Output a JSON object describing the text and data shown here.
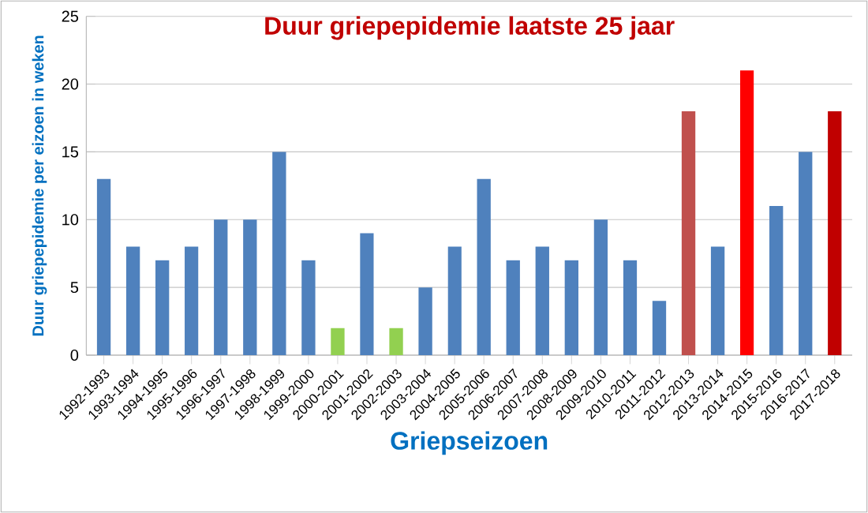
{
  "chart_data": {
    "type": "bar",
    "title": "Duur griepepidemie laatste 25 jaar",
    "xlabel": "Griepseizoen",
    "ylabel": "Duur griepepidemie per eizoen in weken",
    "categories": [
      "1992-1993",
      "1993-1994",
      "1994-1995",
      "1995-1996",
      "1996-1997",
      "1997-1998",
      "1998-1999",
      "1999-2000",
      "2000-2001",
      "2001-2002",
      "2002-2003",
      "2003-2004",
      "2004-2005",
      "2005-2006",
      "2006-2007",
      "2007-2008",
      "2008-2009",
      "2009-2010",
      "2010-2011",
      "2011-2012",
      "2012-2013",
      "2013-2014",
      "2014-2015",
      "2015-2016",
      "2016-2017",
      "2017-2018"
    ],
    "values": [
      13,
      8,
      7,
      8,
      10,
      10,
      15,
      7,
      2,
      9,
      2,
      5,
      8,
      13,
      7,
      8,
      7,
      10,
      7,
      4,
      18,
      8,
      21,
      11,
      15,
      18
    ],
    "colors": [
      "#4f81bd",
      "#4f81bd",
      "#4f81bd",
      "#4f81bd",
      "#4f81bd",
      "#4f81bd",
      "#4f81bd",
      "#4f81bd",
      "#92d050",
      "#4f81bd",
      "#92d050",
      "#4f81bd",
      "#4f81bd",
      "#4f81bd",
      "#4f81bd",
      "#4f81bd",
      "#4f81bd",
      "#4f81bd",
      "#4f81bd",
      "#4f81bd",
      "#c0504d",
      "#4f81bd",
      "#ff0000",
      "#4f81bd",
      "#4f81bd",
      "#c00000"
    ],
    "ylim": [
      0,
      25
    ],
    "yticks": [
      0,
      5,
      10,
      15,
      20,
      25
    ],
    "grid": "y"
  }
}
